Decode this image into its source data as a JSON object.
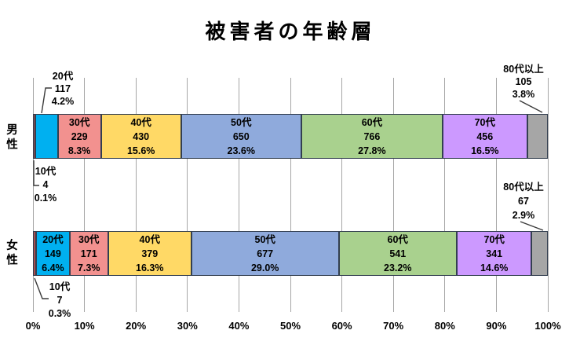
{
  "chart_data": {
    "type": "bar",
    "variant": "horizontal-stacked-percent",
    "title": "被害者の年齢層",
    "x_axis": {
      "range_pct": [
        0,
        100
      ],
      "ticks": [
        "0%",
        "10%",
        "20%",
        "30%",
        "40%",
        "50%",
        "60%",
        "70%",
        "80%",
        "90%",
        "100%"
      ],
      "grid": true,
      "gridline_color": "#a6a6a6"
    },
    "categories": [
      "男性",
      "女性"
    ],
    "colors": {
      "10代": "#a94f4f",
      "20代": "#00b0f0",
      "30代": "#f2918f",
      "40代": "#ffd966",
      "50代": "#8faadc",
      "60代": "#a9d18e",
      "70代": "#cc99ff",
      "80代以上": "#a6a6a6"
    },
    "segment_border_color": "#333f50",
    "series": [
      {
        "name": "男性",
        "segments": [
          {
            "label": "10代",
            "count": "4",
            "percent": "0.1%",
            "value": 0.1,
            "label_inside": false
          },
          {
            "label": "20代",
            "count": "117",
            "percent": "4.2%",
            "value": 4.2,
            "label_inside": false
          },
          {
            "label": "30代",
            "count": "229",
            "percent": "8.3%",
            "value": 8.3,
            "label_inside": true
          },
          {
            "label": "40代",
            "count": "430",
            "percent": "15.6%",
            "value": 15.6,
            "label_inside": true
          },
          {
            "label": "50代",
            "count": "650",
            "percent": "23.6%",
            "value": 23.6,
            "label_inside": true
          },
          {
            "label": "60代",
            "count": "766",
            "percent": "27.8%",
            "value": 27.8,
            "label_inside": true
          },
          {
            "label": "70代",
            "count": "456",
            "percent": "16.5%",
            "value": 16.5,
            "label_inside": true
          },
          {
            "label": "80代以上",
            "count": "105",
            "percent": "3.8%",
            "value": 3.8,
            "label_inside": false
          }
        ]
      },
      {
        "name": "女性",
        "segments": [
          {
            "label": "10代",
            "count": "7",
            "percent": "0.3%",
            "value": 0.3,
            "label_inside": false
          },
          {
            "label": "20代",
            "count": "149",
            "percent": "6.4%",
            "value": 6.4,
            "label_inside": true
          },
          {
            "label": "30代",
            "count": "171",
            "percent": "7.3%",
            "value": 7.3,
            "label_inside": true
          },
          {
            "label": "40代",
            "count": "379",
            "percent": "16.3%",
            "value": 16.3,
            "label_inside": true
          },
          {
            "label": "50代",
            "count": "677",
            "percent": "29.0%",
            "value": 29.0,
            "label_inside": true
          },
          {
            "label": "60代",
            "count": "541",
            "percent": "23.2%",
            "value": 23.2,
            "label_inside": true
          },
          {
            "label": "70代",
            "count": "341",
            "percent": "14.6%",
            "value": 14.6,
            "label_inside": true
          },
          {
            "label": "80代以上",
            "count": "67",
            "percent": "2.9%",
            "value": 2.9,
            "label_inside": false
          }
        ]
      }
    ]
  }
}
